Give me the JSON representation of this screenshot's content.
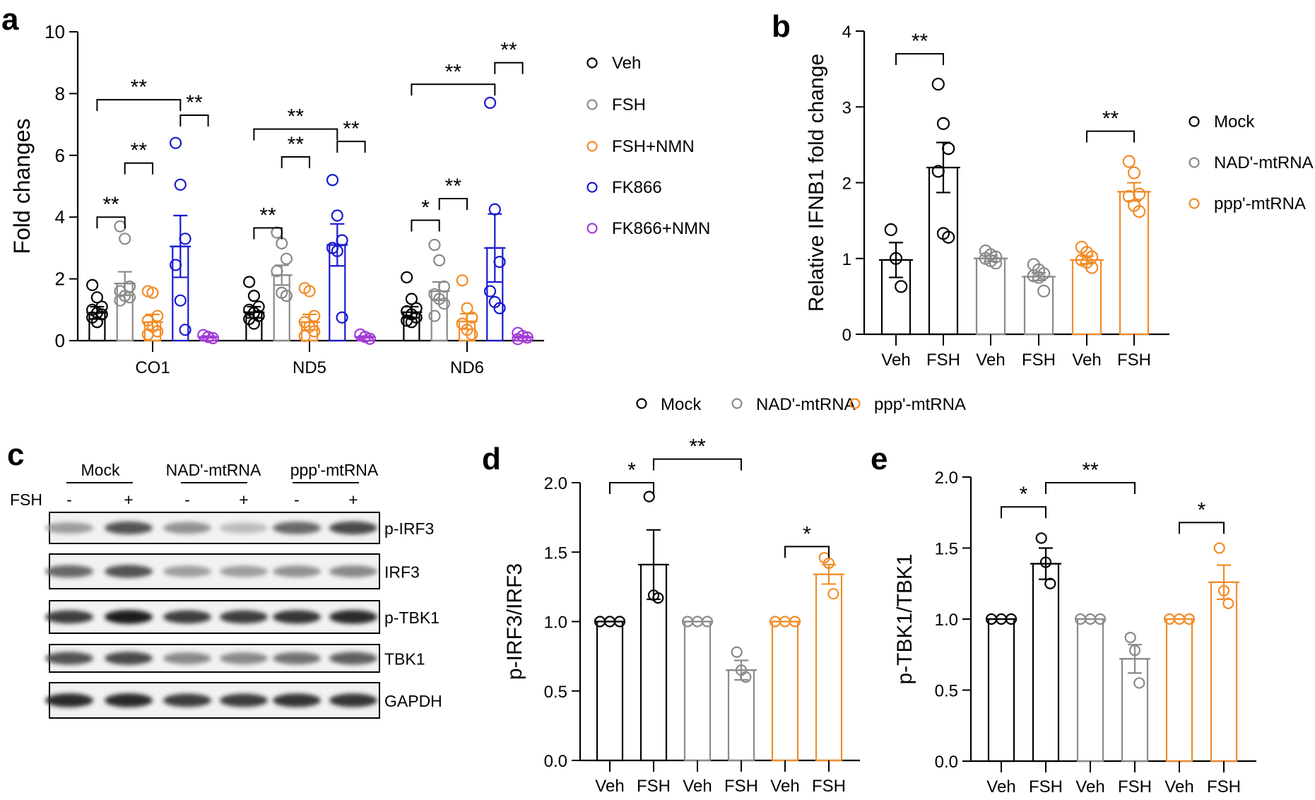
{
  "colors": {
    "Veh": "#000000",
    "FSH": "#8a8a8a",
    "FSH+NMN": "#f28c28",
    "FK866": "#1a1ad0",
    "FK866+NMN": "#a23bd6",
    "Mock": "#000000",
    "NAD'-mtRNA": "#8a8a8a",
    "ppp'-mtRNA": "#f28c28"
  },
  "panel_labels": [
    "a",
    "b",
    "c",
    "d",
    "e"
  ],
  "chart_data": [
    {
      "id": "a",
      "type": "bar",
      "title": "",
      "ylabel": "Fold changes",
      "xlabel": "",
      "ylim": [
        0,
        10
      ],
      "yticks": [
        "0",
        "2",
        "4",
        "6",
        "8",
        "10"
      ],
      "categories": [
        "CO1",
        "ND5",
        "ND6"
      ],
      "legend": {
        "placement": "right",
        "entries": [
          "Veh",
          "FSH",
          "FSH+NMN",
          "FK866",
          "FK866+NMN"
        ]
      },
      "series": [
        {
          "name": "Veh",
          "values": [
            0.9,
            0.92,
            0.92
          ],
          "sem": [
            0.2,
            0.18,
            0.18
          ],
          "points": [
            [
              1.8,
              1.4,
              1.1,
              1.0,
              0.9,
              0.85,
              0.75,
              0.6
            ],
            [
              1.9,
              1.45,
              1.1,
              1.0,
              0.9,
              0.8,
              0.7,
              0.55
            ],
            [
              2.05,
              1.35,
              1.05,
              0.95,
              0.85,
              0.75,
              0.65,
              0.6
            ]
          ]
        },
        {
          "name": "FSH",
          "values": [
            1.85,
            2.12,
            1.6
          ],
          "sem": [
            0.38,
            0.32,
            0.3
          ],
          "points": [
            [
              3.7,
              3.3,
              1.75,
              1.6,
              1.45,
              1.4,
              1.3
            ],
            [
              3.5,
              3.15,
              2.65,
              2.25,
              1.55,
              1.45
            ],
            [
              3.1,
              2.6,
              1.75,
              1.5,
              1.35,
              1.2,
              0.8
            ]
          ]
        },
        {
          "name": "FSH+NMN",
          "values": [
            0.6,
            0.6,
            0.62
          ],
          "sem": [
            0.25,
            0.25,
            0.25
          ],
          "points": [
            [
              1.6,
              1.55,
              0.8,
              0.65,
              0.45,
              0.3,
              0.2
            ],
            [
              1.7,
              1.6,
              0.8,
              0.6,
              0.45,
              0.3,
              0.15
            ],
            [
              1.95,
              1.05,
              0.75,
              0.55,
              0.35,
              0.2
            ]
          ]
        },
        {
          "name": "FK866",
          "values": [
            3.05,
            3.1,
            3.0
          ],
          "sem": [
            1.0,
            0.68,
            1.1
          ],
          "points": [
            [
              6.4,
              5.05,
              3.3,
              2.45,
              1.3,
              0.35
            ],
            [
              5.2,
              4.05,
              3.25,
              3.0,
              2.9,
              0.75
            ],
            [
              7.7,
              4.25,
              2.55,
              1.6,
              1.25,
              1.05
            ]
          ]
        },
        {
          "name": "FK866+NMN",
          "values": [
            0.12,
            0.12,
            0.12
          ],
          "sem": [
            0.03,
            0.03,
            0.03
          ],
          "points": [
            [
              0.18,
              0.12,
              0.08
            ],
            [
              0.2,
              0.12,
              0.06
            ],
            [
              0.25,
              0.15,
              0.1,
              0.05
            ]
          ]
        }
      ],
      "significance": [
        {
          "group": 0,
          "from": 0,
          "to": 1,
          "label": "**",
          "y": 4.0
        },
        {
          "group": 0,
          "from": 1,
          "to": 2,
          "label": "**",
          "y": 5.75
        },
        {
          "group": 0,
          "from": 0,
          "to": 3,
          "label": "**",
          "y": 7.8
        },
        {
          "group": 0,
          "from": 3,
          "to": 4,
          "label": "**",
          "y": 7.3
        },
        {
          "group": 1,
          "from": 0,
          "to": 1,
          "label": "**",
          "y": 3.65
        },
        {
          "group": 1,
          "from": 1,
          "to": 2,
          "label": "**",
          "y": 5.95
        },
        {
          "group": 1,
          "from": 0,
          "to": 3,
          "label": "**",
          "y": 6.85
        },
        {
          "group": 1,
          "from": 3,
          "to": 4,
          "label": "**",
          "y": 6.45
        },
        {
          "group": 2,
          "from": 0,
          "to": 1,
          "label": "*",
          "y": 3.9
        },
        {
          "group": 2,
          "from": 1,
          "to": 2,
          "label": "**",
          "y": 4.6
        },
        {
          "group": 2,
          "from": 0,
          "to": 3,
          "label": "**",
          "y": 8.3
        },
        {
          "group": 2,
          "from": 3,
          "to": 4,
          "label": "**",
          "y": 9.0
        }
      ]
    },
    {
      "id": "b",
      "type": "bar",
      "title": "",
      "ylabel": "Relative IFNB1 fold change",
      "xlabel": "",
      "ylim": [
        0,
        4
      ],
      "yticks": [
        "0",
        "1",
        "2",
        "3",
        "4"
      ],
      "categories": [
        "Veh",
        "FSH",
        "Veh",
        "FSH",
        "Veh",
        "FSH"
      ],
      "groups": [
        "Mock",
        "Mock",
        "NAD'-mtRNA",
        "NAD'-mtRNA",
        "ppp'-mtRNA",
        "ppp'-mtRNA"
      ],
      "legend": {
        "placement": "right",
        "entries": [
          "Mock",
          "NAD'-mtRNA",
          "ppp'-mtRNA"
        ]
      },
      "values": [
        0.98,
        2.2,
        1.0,
        0.76,
        0.98,
        1.88
      ],
      "sem": [
        0.23,
        0.33,
        0.04,
        0.05,
        0.05,
        0.12
      ],
      "points": [
        [
          1.38,
          1.0,
          0.63
        ],
        [
          3.3,
          2.78,
          2.45,
          2.15,
          1.33,
          1.28
        ],
        [
          1.1,
          1.05,
          1.02,
          1.0,
          0.97,
          0.94
        ],
        [
          0.92,
          0.85,
          0.8,
          0.77,
          0.75,
          0.57
        ],
        [
          1.15,
          1.08,
          1.02,
          0.98,
          0.95,
          0.88
        ],
        [
          2.28,
          2.13,
          1.85,
          1.82,
          1.7,
          1.62
        ]
      ],
      "significance": [
        {
          "from": 0,
          "to": 1,
          "label": "**",
          "y": 3.7
        },
        {
          "from": 4,
          "to": 5,
          "label": "**",
          "y": 2.68
        }
      ]
    },
    {
      "id": "d",
      "type": "bar",
      "title": "",
      "ylabel": "p-IRF3/IRF3",
      "xlabel": "",
      "ylim": [
        0,
        2.0
      ],
      "yticks": [
        "0.0",
        "0.5",
        "1.0",
        "1.5",
        "2.0"
      ],
      "categories": [
        "Veh",
        "FSH",
        "Veh",
        "FSH",
        "Veh",
        "FSH"
      ],
      "groups": [
        "Mock",
        "Mock",
        "NAD'-mtRNA",
        "NAD'-mtRNA",
        "ppp'-mtRNA",
        "ppp'-mtRNA"
      ],
      "legend": {
        "placement": "top",
        "entries": [
          "Mock",
          "NAD'-mtRNA",
          "ppp'-mtRNA"
        ]
      },
      "values": [
        1.0,
        1.41,
        1.0,
        0.65,
        1.0,
        1.34
      ],
      "sem": [
        0,
        0.25,
        0,
        0.07,
        0,
        0.07
      ],
      "points": [
        [
          1.0,
          1.0,
          1.0
        ],
        [
          1.9,
          1.19,
          1.17
        ],
        [
          1.0,
          1.0,
          1.0
        ],
        [
          0.78,
          0.65,
          0.6
        ],
        [
          1.0,
          1.0,
          1.0
        ],
        [
          1.46,
          1.42,
          1.2
        ]
      ],
      "significance": [
        {
          "from": 0,
          "to": 1,
          "label": "*",
          "y": 2.0
        },
        {
          "from": 1,
          "to": 3,
          "label": "**",
          "y": 2.17
        },
        {
          "from": 4,
          "to": 5,
          "label": "*",
          "y": 1.54
        }
      ]
    },
    {
      "id": "e",
      "type": "bar",
      "title": "",
      "ylabel": "p-TBK1/TBK1",
      "xlabel": "",
      "ylim": [
        0,
        2.0
      ],
      "yticks": [
        "0.0",
        "0.5",
        "1.0",
        "1.5",
        "2.0"
      ],
      "categories": [
        "Veh",
        "FSH",
        "Veh",
        "FSH",
        "Veh",
        "FSH"
      ],
      "groups": [
        "Mock",
        "Mock",
        "NAD'-mtRNA",
        "NAD'-mtRNA",
        "ppp'-mtRNA",
        "ppp'-mtRNA"
      ],
      "legend": {
        "placement": "top",
        "entries": [
          "Mock",
          "NAD'-mtRNA",
          "ppp'-mtRNA"
        ]
      },
      "values": [
        1.0,
        1.39,
        1.0,
        0.72,
        1.0,
        1.26
      ],
      "sem": [
        0,
        0.11,
        0,
        0.1,
        0,
        0.12
      ],
      "points": [
        [
          1.0,
          1.0,
          1.0
        ],
        [
          1.57,
          1.4,
          1.25
        ],
        [
          1.0,
          1.0,
          1.0
        ],
        [
          0.87,
          0.78,
          0.55
        ],
        [
          1.0,
          1.0,
          1.0
        ],
        [
          1.5,
          1.2,
          1.11
        ]
      ],
      "significance": [
        {
          "from": 0,
          "to": 1,
          "label": "*",
          "y": 1.79
        },
        {
          "from": 1,
          "to": 3,
          "label": "**",
          "y": 1.96
        },
        {
          "from": 4,
          "to": 5,
          "label": "*",
          "y": 1.68
        }
      ]
    }
  ],
  "western_blot": {
    "groups": [
      "Mock",
      "NAD'-mtRNA",
      "ppp'-mtRNA"
    ],
    "treatment_label": "FSH",
    "lane_signs": [
      "-",
      "+",
      "-",
      "+",
      "-",
      "+"
    ],
    "bands": [
      {
        "name": "p-IRF3",
        "intensity": [
          0.35,
          0.7,
          0.4,
          0.2,
          0.6,
          0.75
        ]
      },
      {
        "name": "IRF3",
        "intensity": [
          0.6,
          0.7,
          0.35,
          0.35,
          0.4,
          0.45
        ]
      },
      {
        "name": "p-TBK1",
        "intensity": [
          0.8,
          0.95,
          0.8,
          0.8,
          0.85,
          0.9
        ]
      },
      {
        "name": "TBK1",
        "intensity": [
          0.7,
          0.75,
          0.45,
          0.45,
          0.55,
          0.65
        ]
      },
      {
        "name": "GAPDH",
        "intensity": [
          0.9,
          0.9,
          0.8,
          0.8,
          0.85,
          0.85
        ]
      }
    ]
  }
}
